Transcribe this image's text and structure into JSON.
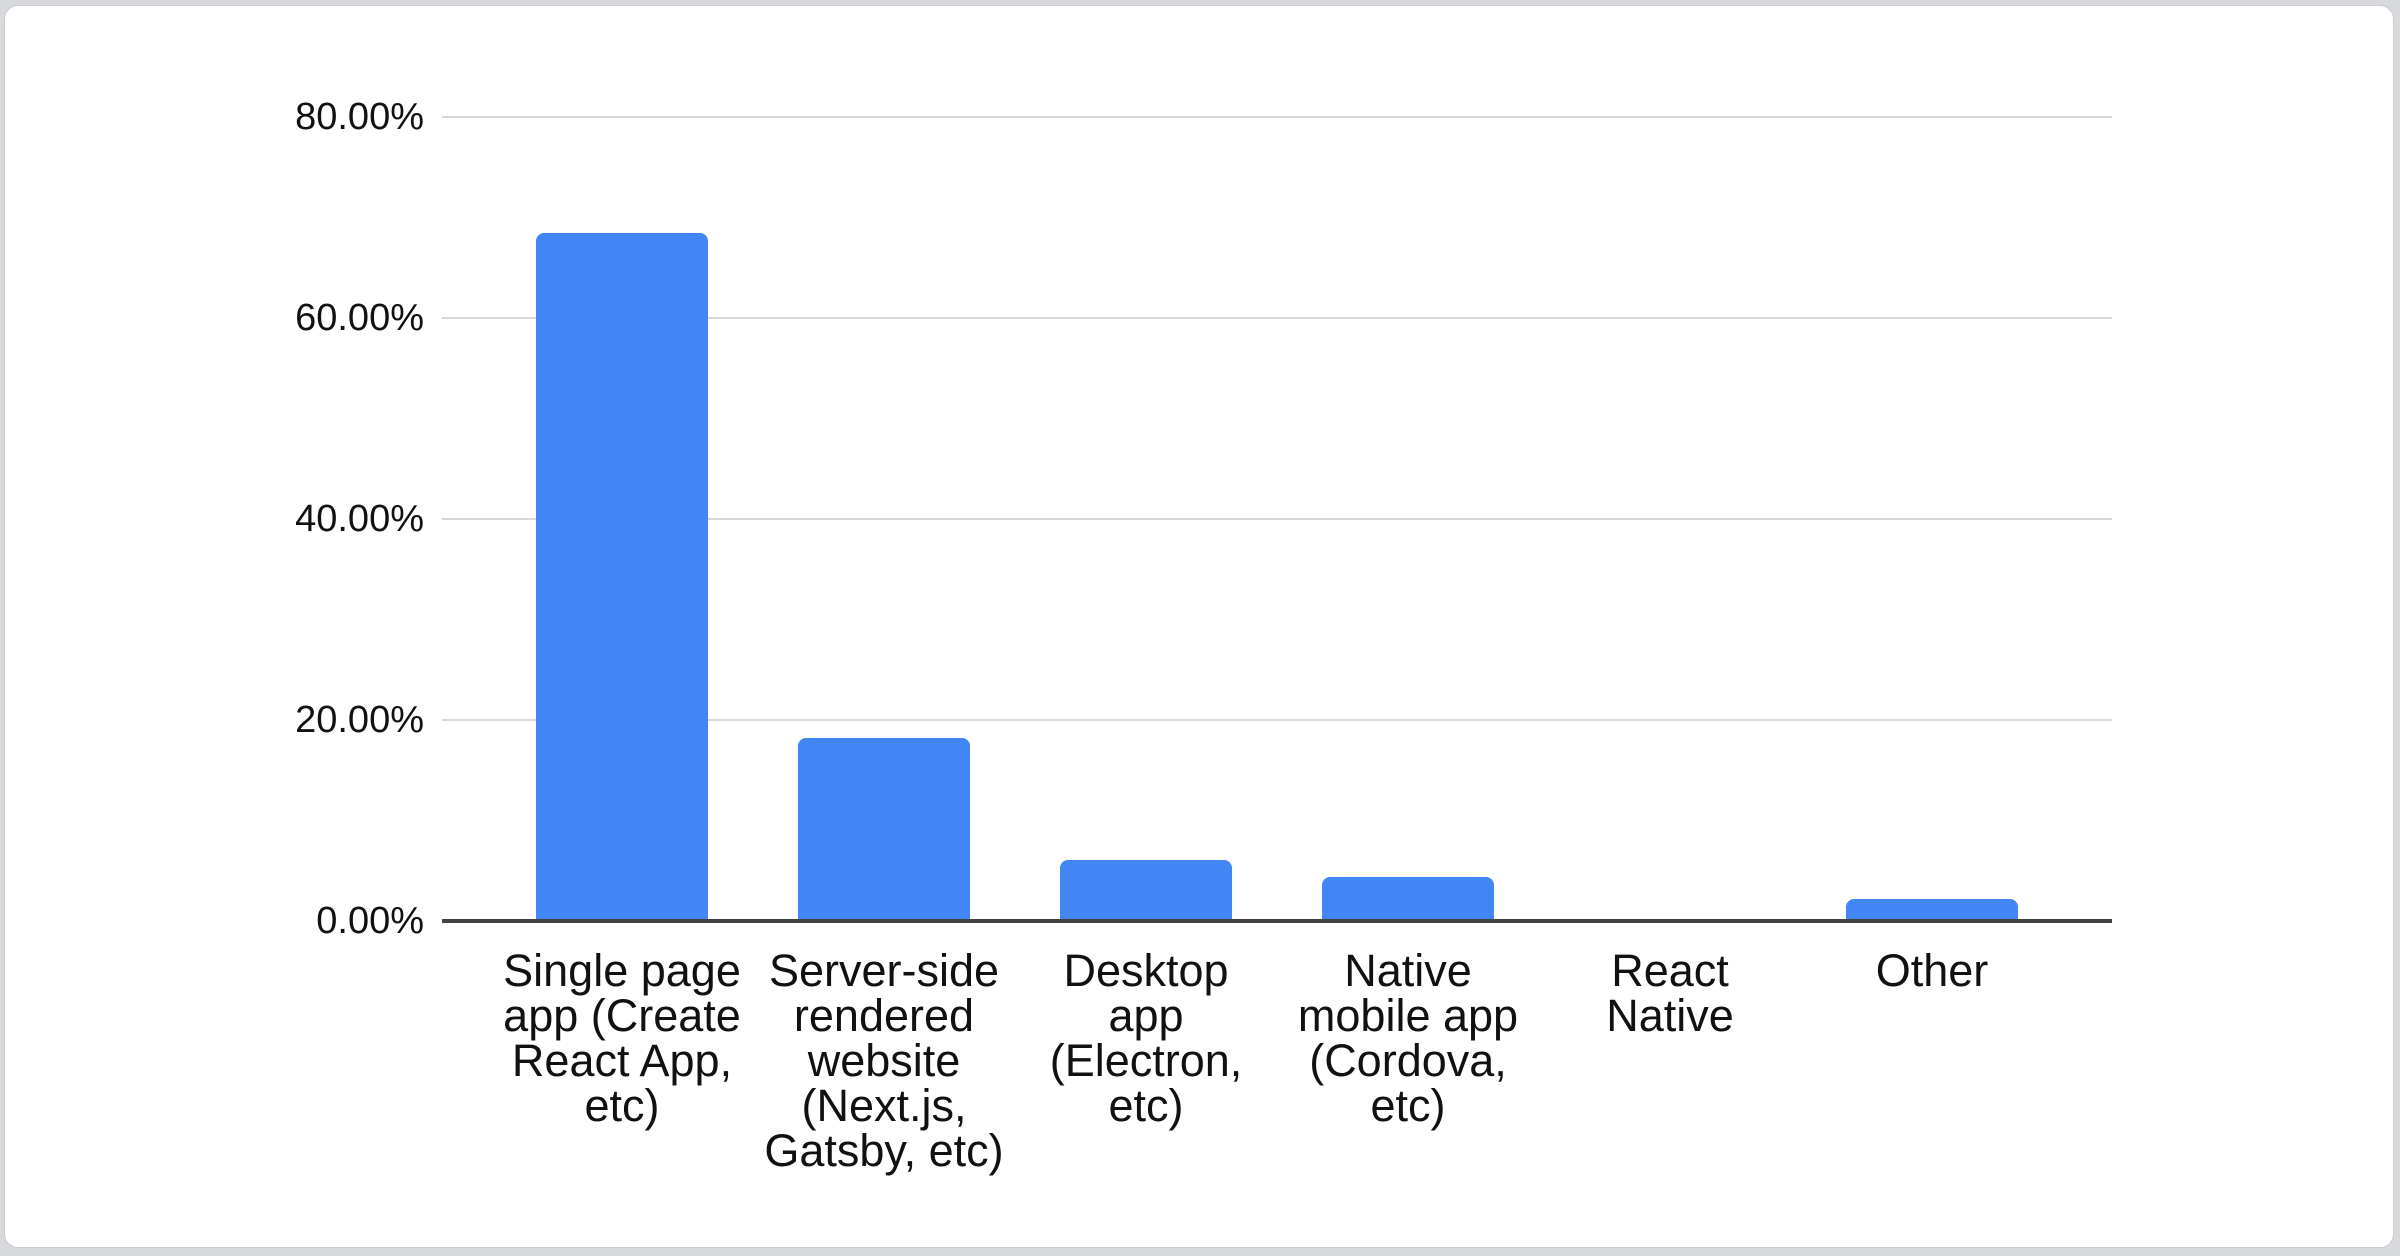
{
  "page": {
    "background_color": "#d7d9dc",
    "card_background_color": "#ffffff",
    "card_border_color": "#c9cbcf"
  },
  "chart_data": {
    "type": "bar",
    "title": "",
    "xlabel": "",
    "ylabel": "",
    "categories": [
      "Single page app (Create React App, etc)",
      "Server-side rendered website (Next.js, Gatsby, etc)",
      "Desktop app (Electron, etc)",
      "Native mobile app (Cordova, etc)",
      "React Native",
      "Other"
    ],
    "categories_display": [
      "Single page\napp (Create\nReact App,\netc)",
      "Server-side\nrendered\nwebsite\n(Next.js,\nGatsby, etc)",
      "Desktop\napp\n(Electron,\netc)",
      "Native\nmobile app\n(Cordova,\netc)",
      "React\nNative",
      "Other"
    ],
    "values": [
      68.5,
      18.2,
      6.1,
      4.4,
      0,
      2.2
    ],
    "value_unit": "percent",
    "y_ticks": [
      {
        "label": "0.00%",
        "value": 0
      },
      {
        "label": "20.00%",
        "value": 20
      },
      {
        "label": "40.00%",
        "value": 40
      },
      {
        "label": "60.00%",
        "value": 60
      },
      {
        "label": "80.00%",
        "value": 80
      }
    ],
    "ylim": [
      0,
      80
    ],
    "grid": true,
    "legend": "none",
    "bar_color": "#4285f4",
    "gridline_color": "#d8d8d8",
    "axis_color": "#424242",
    "label_color": "#111111"
  }
}
